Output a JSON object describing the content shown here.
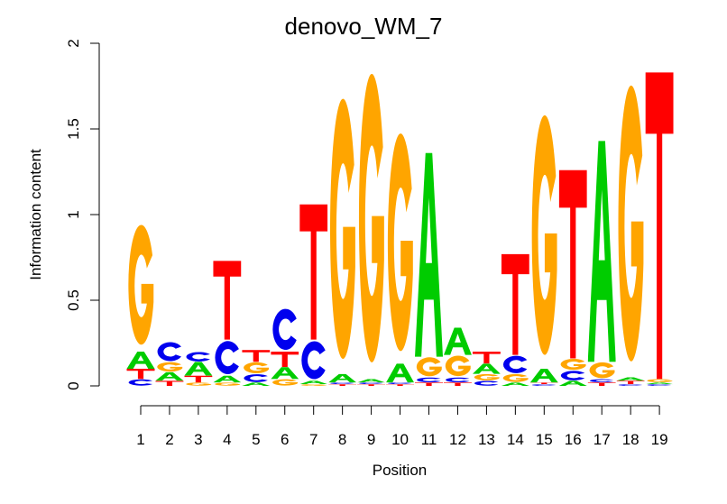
{
  "chart_data": {
    "type": "sequence-logo",
    "title": "denovo_WM_7",
    "xlabel": "Position",
    "ylabel": "Information content",
    "ylim": [
      0,
      2
    ],
    "yticks": [
      "0",
      "0.5",
      "1",
      "1.5",
      "2"
    ],
    "positions": [
      "1",
      "2",
      "3",
      "4",
      "5",
      "6",
      "7",
      "8",
      "9",
      "10",
      "11",
      "12",
      "13",
      "14",
      "15",
      "16",
      "17",
      "18",
      "19"
    ],
    "colors": {
      "A": "#00cc00",
      "C": "#0000ee",
      "G": "#ffa500",
      "T": "#ff0000"
    },
    "stacks": [
      [
        [
          "C",
          0.04
        ],
        [
          "T",
          0.06
        ],
        [
          "A",
          0.1
        ],
        [
          "G",
          0.76
        ]
      ],
      [
        [
          "T",
          0.03
        ],
        [
          "A",
          0.05
        ],
        [
          "G",
          0.06
        ],
        [
          "C",
          0.12
        ]
      ],
      [
        [
          "G",
          0.02
        ],
        [
          "T",
          0.04
        ],
        [
          "A",
          0.08
        ],
        [
          "C",
          0.06
        ]
      ],
      [
        [
          "G",
          0.02
        ],
        [
          "A",
          0.04
        ],
        [
          "C",
          0.21
        ],
        [
          "T",
          0.46
        ]
      ],
      [
        [
          "A",
          0.02
        ],
        [
          "C",
          0.05
        ],
        [
          "G",
          0.07
        ],
        [
          "T",
          0.07
        ]
      ],
      [
        [
          "G",
          0.04
        ],
        [
          "A",
          0.07
        ],
        [
          "T",
          0.09
        ],
        [
          "C",
          0.26
        ]
      ],
      [
        [
          "G",
          0.01
        ],
        [
          "A",
          0.02
        ],
        [
          "C",
          0.24
        ],
        [
          "T",
          0.79
        ]
      ],
      [
        [
          "T",
          0.01
        ],
        [
          "C",
          0.01
        ],
        [
          "A",
          0.05
        ],
        [
          "G",
          1.65
        ]
      ],
      [
        [
          "T",
          0.01
        ],
        [
          "C",
          0.01
        ],
        [
          "A",
          0.02
        ],
        [
          "G",
          1.83
        ]
      ],
      [
        [
          "T",
          0.01
        ],
        [
          "C",
          0.01
        ],
        [
          "A",
          0.11
        ],
        [
          "G",
          1.38
        ]
      ],
      [
        [
          "T",
          0.02
        ],
        [
          "C",
          0.03
        ],
        [
          "G",
          0.12
        ],
        [
          "A",
          1.19
        ]
      ],
      [
        [
          "T",
          0.02
        ],
        [
          "C",
          0.03
        ],
        [
          "G",
          0.13
        ],
        [
          "A",
          0.16
        ]
      ],
      [
        [
          "C",
          0.03
        ],
        [
          "G",
          0.04
        ],
        [
          "A",
          0.06
        ],
        [
          "T",
          0.07
        ]
      ],
      [
        [
          "A",
          0.02
        ],
        [
          "G",
          0.05
        ],
        [
          "C",
          0.11
        ],
        [
          "T",
          0.59
        ]
      ],
      [
        [
          "C",
          0.01
        ],
        [
          "T",
          0.01
        ],
        [
          "A",
          0.08
        ],
        [
          "G",
          1.52
        ]
      ],
      [
        [
          "A",
          0.03
        ],
        [
          "C",
          0.06
        ],
        [
          "G",
          0.07
        ],
        [
          "T",
          1.1
        ]
      ],
      [
        [
          "T",
          0.02
        ],
        [
          "C",
          0.02
        ],
        [
          "G",
          0.1
        ],
        [
          "A",
          1.29
        ]
      ],
      [
        [
          "C",
          0.01
        ],
        [
          "T",
          0.02
        ],
        [
          "A",
          0.02
        ],
        [
          "G",
          1.75
        ]
      ],
      [
        [
          "C",
          0.01
        ],
        [
          "A",
          0.01
        ],
        [
          "G",
          0.02
        ],
        [
          "T",
          1.79
        ]
      ]
    ]
  }
}
